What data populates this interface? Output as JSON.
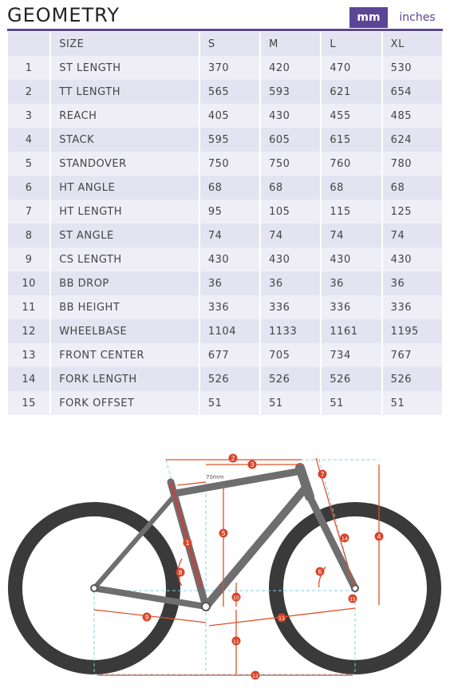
{
  "header": {
    "title": "GEOMETRY",
    "unit_active": "mm",
    "unit_inactive": "inches"
  },
  "table": {
    "columns": [
      "",
      "SIZE",
      "S",
      "M",
      "L",
      "XL"
    ],
    "rows": [
      {
        "num": "1",
        "label": "ST LENGTH",
        "values": [
          "370",
          "420",
          "470",
          "530"
        ]
      },
      {
        "num": "2",
        "label": "TT LENGTH",
        "values": [
          "565",
          "593",
          "621",
          "654"
        ]
      },
      {
        "num": "3",
        "label": "REACH",
        "values": [
          "405",
          "430",
          "455",
          "485"
        ]
      },
      {
        "num": "4",
        "label": "STACK",
        "values": [
          "595",
          "605",
          "615",
          "624"
        ]
      },
      {
        "num": "5",
        "label": "STANDOVER",
        "values": [
          "750",
          "750",
          "760",
          "780"
        ]
      },
      {
        "num": "6",
        "label": "HT ANGLE",
        "values": [
          "68",
          "68",
          "68",
          "68"
        ]
      },
      {
        "num": "7",
        "label": "HT LENGTH",
        "values": [
          "95",
          "105",
          "115",
          "125"
        ]
      },
      {
        "num": "8",
        "label": "ST ANGLE",
        "values": [
          "74",
          "74",
          "74",
          "74"
        ]
      },
      {
        "num": "9",
        "label": "CS LENGTH",
        "values": [
          "430",
          "430",
          "430",
          "430"
        ]
      },
      {
        "num": "10",
        "label": "BB DROP",
        "values": [
          "36",
          "36",
          "36",
          "36"
        ]
      },
      {
        "num": "11",
        "label": "BB HEIGHT",
        "values": [
          "336",
          "336",
          "336",
          "336"
        ]
      },
      {
        "num": "12",
        "label": "WHEELBASE",
        "values": [
          "1104",
          "1133",
          "1161",
          "1195"
        ]
      },
      {
        "num": "13",
        "label": "FRONT CENTER",
        "values": [
          "677",
          "705",
          "734",
          "767"
        ]
      },
      {
        "num": "14",
        "label": "FORK LENGTH",
        "values": [
          "526",
          "526",
          "526",
          "526"
        ]
      },
      {
        "num": "15",
        "label": "FORK OFFSET",
        "values": [
          "51",
          "51",
          "51",
          "51"
        ]
      }
    ]
  },
  "diagram": {
    "note": "70mm",
    "markers": [
      "1",
      "2",
      "3",
      "4",
      "5",
      "6",
      "7",
      "8",
      "9",
      "10",
      "11",
      "12",
      "13",
      "14",
      "15"
    ],
    "colors": {
      "tire": "#3a3a3a",
      "frame": "#6e6e6e",
      "dimension": "#e0502a",
      "guide": "#7fd0e6",
      "marker": "#d9442a"
    }
  }
}
